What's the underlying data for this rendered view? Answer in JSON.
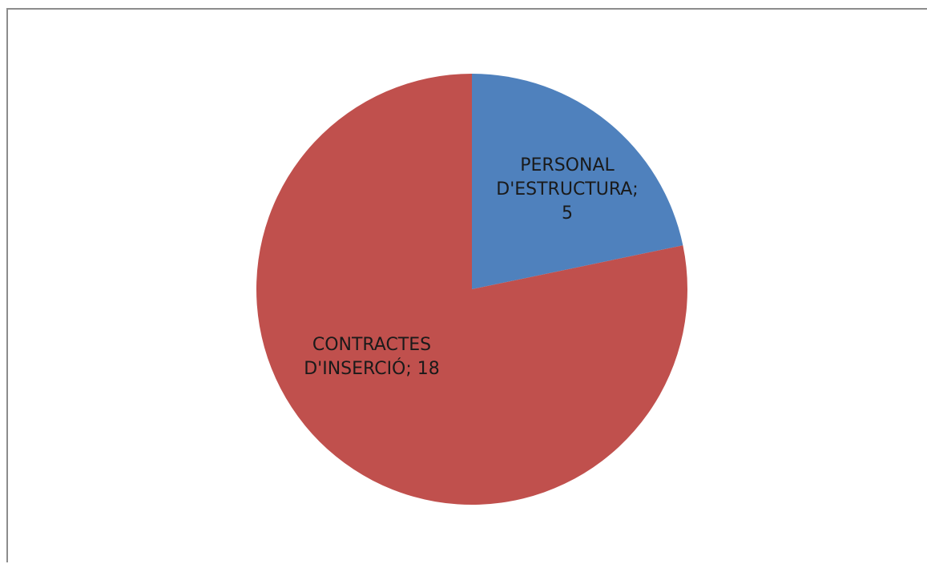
{
  "chart_data": {
    "type": "pie",
    "title": "",
    "slices": [
      {
        "label_lines": [
          "PERSONAL",
          "D'ESTRUCTURA;",
          "5"
        ],
        "name": "PERSONAL D'ESTRUCTURA",
        "value": 5,
        "color": "#4f81bd"
      },
      {
        "label_lines": [
          "CONTRACTES",
          "D'INSERCIÓ; 18"
        ],
        "name": "CONTRACTES D'INSERCIÓ",
        "value": 18,
        "color": "#c0504d"
      }
    ],
    "start_angle_deg": 0,
    "direction": "clockwise",
    "data_labels": "inside",
    "legend": "none"
  },
  "frame": {
    "border_color": "#8c8c8c",
    "background": "#ffffff"
  }
}
